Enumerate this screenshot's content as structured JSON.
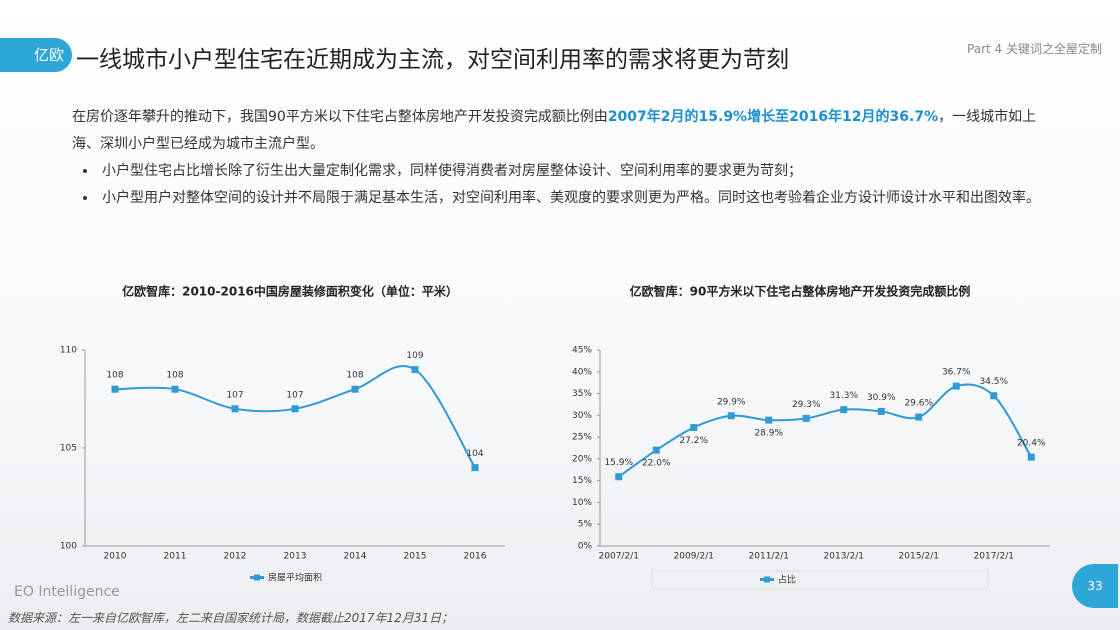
{
  "header": {
    "logo": "亿欧",
    "title": "一线城市小户型住宅在近期成为主流，对空间利用率的需求将更为苛刻",
    "part": "Part 4 关键词之全屋定制"
  },
  "body": {
    "intro": "在房价逐年攀升的推动下，我国90平方米以下住宅占整体房地产开发投资完成额比例由",
    "highlight": "2007年2月的15.9%增长至2016年12月的36.7%",
    "intro_end": "，一线城市如上海、深圳小户型已经成为城市主流户型。",
    "bullets": [
      "小户型住宅占比增长除了衍生出大量定制化需求，同样使得消费者对房屋整体设计、空间利用率的要求更为苛刻；",
      "小户型用户对整体空间的设计并不局限于满足基本生活，对空间利用率、美观度的要求则更为严格。同时这也考验着企业方设计师设计水平和出图效率。"
    ]
  },
  "footer": {
    "brand": "EO Intelligence",
    "page": "33",
    "source": "数据来源：左一来自亿欧智库，左二来自国家统计局，数据截止2017年12月31日；"
  },
  "chart_data": [
    {
      "type": "line",
      "title": "亿欧智库：2010-2016中国房屋装修面积变化（单位：平米）",
      "categories": [
        "2010",
        "2011",
        "2012",
        "2013",
        "2014",
        "2015",
        "2016"
      ],
      "series": [
        {
          "name": "房屋平均面积",
          "color": "#2f9bd6",
          "values": [
            108,
            108,
            107,
            107,
            108,
            109,
            104
          ]
        }
      ],
      "ylim": [
        100,
        110
      ],
      "yticks": [
        100,
        105,
        110
      ]
    },
    {
      "type": "line",
      "title": "亿欧智库：90平方米以下住宅占整体房地产开发投资完成额比例",
      "categories": [
        "2007/2/1",
        null,
        "2009/2/1",
        null,
        "2011/2/1",
        null,
        "2013/2/1",
        null,
        "2015/2/1",
        null,
        "2017/2/1",
        null
      ],
      "series": [
        {
          "name": "占比",
          "color": "#2f9bd6",
          "values": [
            15.9,
            22.0,
            27.2,
            29.9,
            28.9,
            29.3,
            31.3,
            30.9,
            29.6,
            36.7,
            34.5,
            20.4
          ],
          "value_labels": [
            "15.9%",
            "22.0%",
            "27.2%",
            "29.9%",
            "28.9%",
            "29.3%",
            "31.3%",
            "30.9%",
            "29.6%",
            "36.7%",
            "34.5%",
            "20.4%"
          ]
        }
      ],
      "ylim": [
        0,
        45
      ],
      "yticks": [
        {
          "value": 0,
          "label": "0%"
        },
        {
          "value": 5,
          "label": "5%"
        },
        {
          "value": 10,
          "label": "10%"
        },
        {
          "value": 15,
          "label": "15%"
        },
        {
          "value": 20,
          "label": "20%"
        },
        {
          "value": 25,
          "label": "25%"
        },
        {
          "value": 30,
          "label": "30%"
        },
        {
          "value": 35,
          "label": "35%"
        },
        {
          "value": 40,
          "label": "40%"
        },
        {
          "value": 45,
          "label": "45%"
        }
      ]
    }
  ]
}
